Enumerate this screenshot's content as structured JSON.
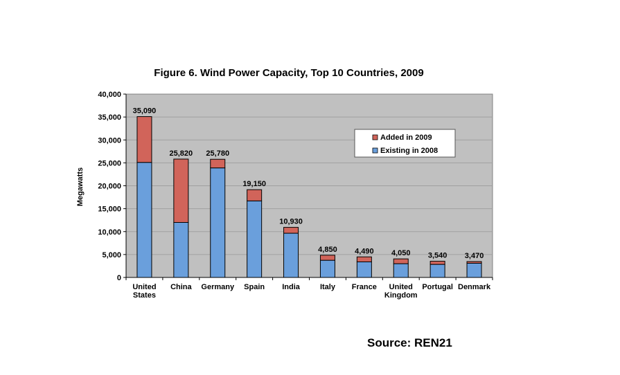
{
  "chart_data": {
    "type": "bar",
    "stacked": true,
    "title": "Figure 6. Wind Power Capacity, Top 10 Countries, 2009",
    "ylabel": "Megawatts",
    "xlabel": "",
    "ylim": [
      0,
      40000
    ],
    "yticks": [
      "0",
      "5,000",
      "10,000",
      "15,000",
      "20,000",
      "25,000",
      "30,000",
      "35,000",
      "40,000"
    ],
    "grid": true,
    "legend_position": "top-right",
    "categories": [
      [
        "United",
        "States"
      ],
      [
        "China"
      ],
      [
        "Germany"
      ],
      [
        "Spain"
      ],
      [
        "India"
      ],
      [
        "Italy"
      ],
      [
        "France"
      ],
      [
        "United",
        "Kingdom"
      ],
      [
        "Portugal"
      ],
      [
        "Denmark"
      ]
    ],
    "series": [
      {
        "name": "Existing in 2008",
        "color": "#6a9fdc",
        "values": [
          25100,
          12000,
          23900,
          16700,
          9650,
          3750,
          3400,
          3000,
          2850,
          3100
        ]
      },
      {
        "name": "Added in 2009",
        "color": "#d1645a",
        "values": [
          9990,
          13820,
          1880,
          2450,
          1280,
          1100,
          1090,
          1050,
          690,
          370
        ]
      }
    ],
    "totals": [
      "35,090",
      "25,820",
      "25,780",
      "19,150",
      "10,930",
      "4,850",
      "4,490",
      "4,050",
      "3,540",
      "3,470"
    ],
    "legend": [
      "Added in 2009",
      "Existing in 2008"
    ]
  },
  "source": "Source: REN21",
  "colors": {
    "plot_background": "#c0c0c0",
    "existing": "#6a9fdc",
    "added": "#d1645a"
  }
}
